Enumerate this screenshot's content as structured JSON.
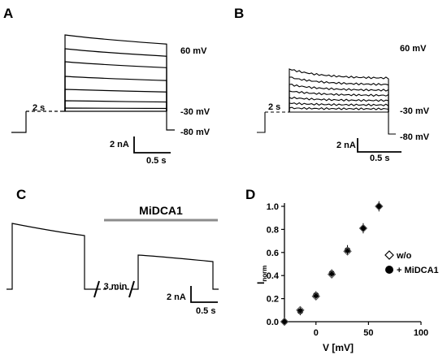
{
  "panels": {
    "a": "A",
    "b": "B",
    "c": "C",
    "d": "D"
  },
  "panel_a": {
    "prepulse_label": "2 s",
    "v_top_label": "60 mV",
    "v_mid_label": "-30 mV",
    "v_hold_label": "-80 mV",
    "scale_i_label": "2 nA",
    "scale_t_label": "0.5 s"
  },
  "panel_b": {
    "prepulse_label": "2 s",
    "v_top_label": "60 mV",
    "v_mid_label": "-30 mV",
    "v_hold_label": "-80 mV",
    "scale_i_label": "2 nA",
    "scale_t_label": "0.5 s"
  },
  "panel_c": {
    "drug_label": "MiDCA1",
    "gap_label": "3 min",
    "scale_i_label": "2 nA",
    "scale_t_label": "0.5 s"
  },
  "chart_data": {
    "type": "scatter",
    "xlabel": "V [mV]",
    "ylabel": "I",
    "ylabel_sub": "norm",
    "xlim": [
      -30,
      100
    ],
    "ylim": [
      0,
      1.0
    ],
    "xticks": [
      "0",
      "50",
      "100"
    ],
    "yticks": [
      "0.0",
      "0.2",
      "0.4",
      "0.6",
      "0.8",
      "1.0"
    ],
    "legend_position": "bottom-right",
    "series": [
      {
        "name": "w/o",
        "marker": "open-diamond",
        "x": [
          -30,
          -15,
          0,
          15,
          30,
          45,
          60
        ],
        "y": [
          0.0,
          0.1,
          0.22,
          0.41,
          0.61,
          0.81,
          1.0
        ],
        "err": [
          0.01,
          0.02,
          0.02,
          0.02,
          0.03,
          0.03,
          0.03
        ]
      },
      {
        "name": "+ MiDCA1",
        "marker": "filled-circle",
        "x": [
          -30,
          -15,
          0,
          15,
          30,
          45,
          60
        ],
        "y": [
          0.0,
          0.09,
          0.23,
          0.42,
          0.62,
          0.81,
          1.0
        ],
        "err": [
          0.01,
          0.02,
          0.02,
          0.02,
          0.03,
          0.03,
          0.03
        ]
      }
    ]
  }
}
